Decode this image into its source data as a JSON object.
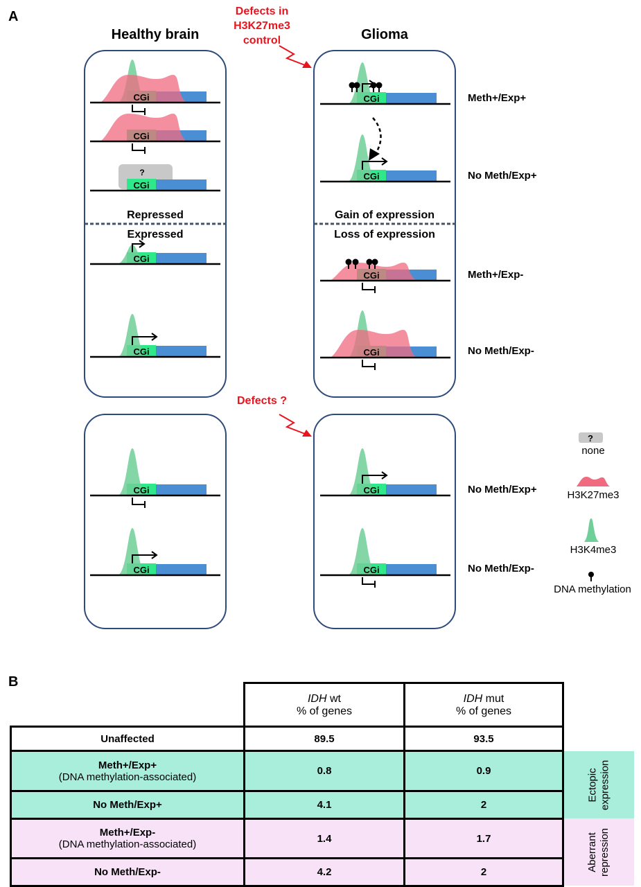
{
  "panel_a": {
    "label": "A",
    "healthy_title": "Healthy brain",
    "glioma_title": "Glioma",
    "defects_top": [
      "Defects in",
      "H3K27me3",
      "control"
    ],
    "defects_bottom": "Defects ?",
    "cgi_label": "CGi",
    "unknown_mark": "?",
    "left_divider_top": "Repressed",
    "left_divider_bottom": "Expressed",
    "right_divider_top": "Gain of expression",
    "right_divider_bottom": "Loss of expression",
    "row_labels": [
      "Meth+/Exp+",
      "No Meth/Exp+",
      "Meth+/Exp-",
      "No Meth/Exp-",
      "No Meth/Exp+",
      "No Meth/Exp-"
    ],
    "legend": {
      "none": "none",
      "h3k27": "H3K27me3",
      "h3k4": "H3K4me3",
      "dnameth": "DNA methylation"
    },
    "colors": {
      "cgi": "#2ee88a",
      "gene": "#4a8fd4",
      "h3k4": "#6fcf98",
      "h3k27": "#f06a80",
      "box": "#2e4a7a",
      "red": "#e8141e"
    }
  },
  "panel_b": {
    "label": "B",
    "header": [
      {
        "italic": "IDH",
        "rest": " wt",
        "line2": "% of genes"
      },
      {
        "italic": "IDH",
        "rest": " mut",
        "line2": "% of genes"
      }
    ],
    "rows": [
      {
        "label": "Unaffected",
        "sub": "",
        "wt": "89.5",
        "mut": "93.5"
      },
      {
        "label": "Meth+/Exp+",
        "sub": "(DNA methylation-associated)",
        "wt": "0.8",
        "mut": "0.9"
      },
      {
        "label": "No Meth/Exp+",
        "sub": "",
        "wt": "4.1",
        "mut": "2"
      },
      {
        "label": "Meth+/Exp-",
        "sub": "(DNA methylation-associated)",
        "wt": "1.4",
        "mut": "1.7"
      },
      {
        "label": "No Meth/Exp-",
        "sub": "",
        "wt": "4.2",
        "mut": "2"
      }
    ],
    "side_groups": [
      {
        "line1": "Ectopic",
        "line2": "expression"
      },
      {
        "line1": "Aberrant",
        "line2": "repression"
      }
    ],
    "colors": {
      "ectopic": "#a8eedb",
      "aberrant": "#f8e2f8"
    }
  }
}
